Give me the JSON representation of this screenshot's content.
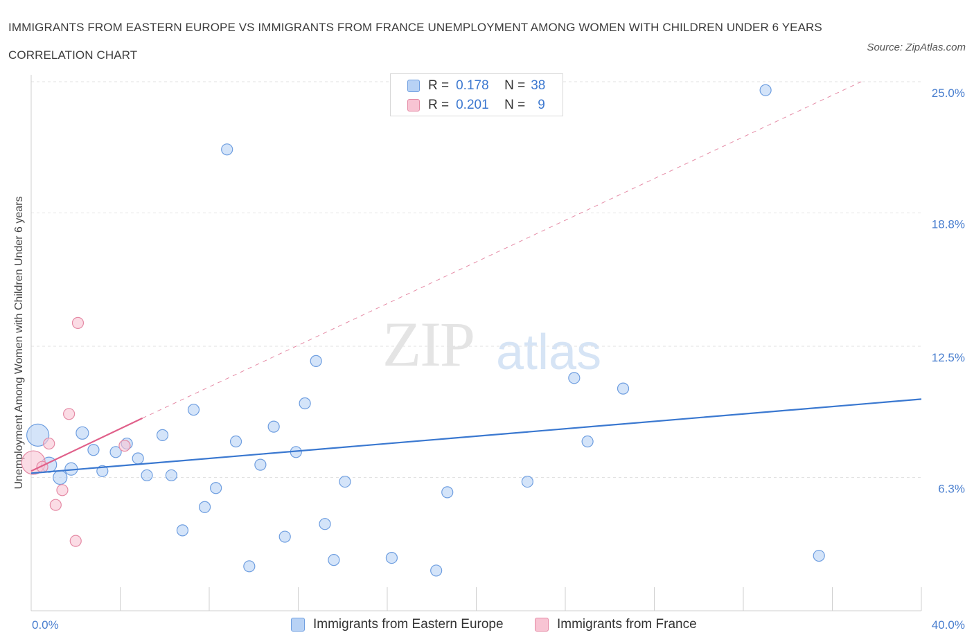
{
  "title": "IMMIGRANTS FROM EASTERN EUROPE VS IMMIGRANTS FROM FRANCE UNEMPLOYMENT AMONG WOMEN WITH CHILDREN UNDER 6 YEARS CORRELATION CHART",
  "source": "Source: ZipAtlas.com",
  "watermark": {
    "zip": "ZIP",
    "atlas": "atlas"
  },
  "legend": {
    "rows": [
      {
        "r_label": "R =",
        "r_value": "0.178",
        "n_label": "N =",
        "n_value": "38"
      },
      {
        "r_label": "R =",
        "r_value": "0.201",
        "n_label": "N =",
        "n_value": "9"
      }
    ]
  },
  "colors": {
    "series_a_fill": "#b8d2f5",
    "series_a_stroke": "#6e9ee0",
    "series_a_line": "#3a78d0",
    "series_b_fill": "#f8c4d3",
    "series_b_stroke": "#e58aa5",
    "series_b_line": "#e0608a",
    "tick_label": "#4a7fcf"
  },
  "chart_data": {
    "type": "scatter",
    "title": "IMMIGRANTS FROM EASTERN EUROPE VS IMMIGRANTS FROM FRANCE UNEMPLOYMENT AMONG WOMEN WITH CHILDREN UNDER 6 YEARS CORRELATION CHART",
    "xlabel": "",
    "ylabel": "Unemployment Among Women with Children Under 6 years",
    "xlim": [
      0,
      40
    ],
    "ylim": [
      0,
      25
    ],
    "x_tick_labels": [
      "0.0%",
      "40.0%"
    ],
    "y_ticks": [
      6.3,
      12.5,
      18.8,
      25.0
    ],
    "y_tick_labels": [
      "6.3%",
      "12.5%",
      "18.8%",
      "25.0%"
    ],
    "grid": true,
    "legend_position": "top-center",
    "series": [
      {
        "name": "Immigrants from Eastern Europe",
        "r": 0.178,
        "n": 38,
        "points": [
          {
            "x": 0.3,
            "y": 8.3,
            "size": 16
          },
          {
            "x": 0.8,
            "y": 6.9,
            "size": 11
          },
          {
            "x": 1.3,
            "y": 6.3,
            "size": 10
          },
          {
            "x": 1.8,
            "y": 6.7,
            "size": 9
          },
          {
            "x": 2.3,
            "y": 8.4,
            "size": 9
          },
          {
            "x": 2.8,
            "y": 7.6,
            "size": 8
          },
          {
            "x": 3.2,
            "y": 6.6,
            "size": 8
          },
          {
            "x": 3.8,
            "y": 7.5,
            "size": 8
          },
          {
            "x": 4.3,
            "y": 7.9,
            "size": 8
          },
          {
            "x": 4.8,
            "y": 7.2,
            "size": 8
          },
          {
            "x": 5.2,
            "y": 6.4,
            "size": 8
          },
          {
            "x": 5.9,
            "y": 8.3,
            "size": 8
          },
          {
            "x": 6.3,
            "y": 6.4,
            "size": 8
          },
          {
            "x": 6.8,
            "y": 3.8,
            "size": 8
          },
          {
            "x": 7.3,
            "y": 9.5,
            "size": 8
          },
          {
            "x": 7.8,
            "y": 4.9,
            "size": 8
          },
          {
            "x": 8.3,
            "y": 5.8,
            "size": 8
          },
          {
            "x": 8.8,
            "y": 21.8,
            "size": 8
          },
          {
            "x": 9.2,
            "y": 8.0,
            "size": 8
          },
          {
            "x": 9.8,
            "y": 2.1,
            "size": 8
          },
          {
            "x": 10.3,
            "y": 6.9,
            "size": 8
          },
          {
            "x": 10.9,
            "y": 8.7,
            "size": 8
          },
          {
            "x": 11.4,
            "y": 3.5,
            "size": 8
          },
          {
            "x": 11.9,
            "y": 7.5,
            "size": 8
          },
          {
            "x": 12.3,
            "y": 9.8,
            "size": 8
          },
          {
            "x": 12.8,
            "y": 11.8,
            "size": 8
          },
          {
            "x": 13.2,
            "y": 4.1,
            "size": 8
          },
          {
            "x": 13.6,
            "y": 2.4,
            "size": 8
          },
          {
            "x": 14.1,
            "y": 6.1,
            "size": 8
          },
          {
            "x": 16.2,
            "y": 2.5,
            "size": 8
          },
          {
            "x": 18.2,
            "y": 1.9,
            "size": 8
          },
          {
            "x": 18.7,
            "y": 5.6,
            "size": 8
          },
          {
            "x": 22.3,
            "y": 6.1,
            "size": 8
          },
          {
            "x": 24.4,
            "y": 11.0,
            "size": 8
          },
          {
            "x": 25.0,
            "y": 8.0,
            "size": 8
          },
          {
            "x": 26.6,
            "y": 10.5,
            "size": 8
          },
          {
            "x": 33.0,
            "y": 24.6,
            "size": 8
          },
          {
            "x": 35.4,
            "y": 2.6,
            "size": 8
          }
        ],
        "trend": {
          "x": [
            0,
            40
          ],
          "y": [
            6.5,
            10.0
          ],
          "style": "solid"
        }
      },
      {
        "name": "Immigrants from France",
        "r": 0.201,
        "n": 9,
        "points": [
          {
            "x": 0.1,
            "y": 7.0,
            "size": 17
          },
          {
            "x": 0.5,
            "y": 6.8,
            "size": 8
          },
          {
            "x": 0.8,
            "y": 7.9,
            "size": 8
          },
          {
            "x": 1.1,
            "y": 5.0,
            "size": 8
          },
          {
            "x": 1.4,
            "y": 5.7,
            "size": 8
          },
          {
            "x": 1.7,
            "y": 9.3,
            "size": 8
          },
          {
            "x": 2.0,
            "y": 3.3,
            "size": 8
          },
          {
            "x": 2.1,
            "y": 13.6,
            "size": 8
          },
          {
            "x": 4.2,
            "y": 7.8,
            "size": 8
          }
        ],
        "trend": {
          "x": [
            0,
            5.0
          ],
          "y": [
            6.6,
            9.1
          ],
          "style": "solid"
        },
        "trend_extended": {
          "x": [
            5.0,
            37.3
          ],
          "y": [
            9.1,
            25.0
          ],
          "style": "dashed"
        }
      }
    ]
  }
}
